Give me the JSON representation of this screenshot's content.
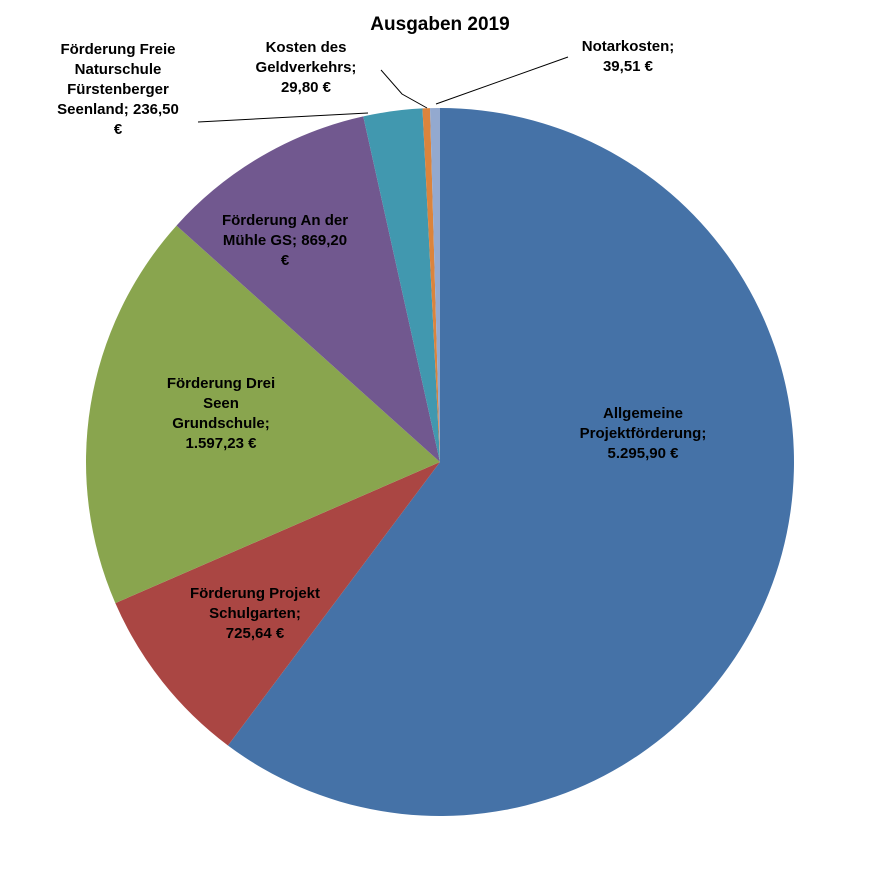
{
  "chart_data": {
    "type": "pie",
    "title": "Ausgaben 2019",
    "series": [
      {
        "name": "Allgemeine Projektförderung",
        "value": 5295.9,
        "label_lines": [
          "Allgemeine",
          "Projektförderung;",
          "5.295,90 €"
        ],
        "color": "#4572a7"
      },
      {
        "name": "Förderung Projekt Schulgarten",
        "value": 725.64,
        "label_lines": [
          "Förderung Projekt",
          "Schulgarten;",
          "725,64 €"
        ],
        "color": "#aa4643"
      },
      {
        "name": "Förderung Drei Seen Grundschule",
        "value": 1597.23,
        "label_lines": [
          "Förderung Drei",
          "Seen",
          "Grundschule;",
          "1.597,23 €"
        ],
        "color": "#89a54e"
      },
      {
        "name": "Förderung An der Mühle GS",
        "value": 869.2,
        "label_lines": [
          "Förderung An der",
          "Mühle GS; 869,20",
          "€"
        ],
        "color": "#71588f"
      },
      {
        "name": "Förderung Freie Naturschule Fürstenberger Seenland",
        "value": 236.5,
        "label_lines": [
          "Förderung Freie",
          "Naturschule",
          "Fürstenberger",
          "Seenland; 236,50",
          "€"
        ],
        "color": "#4198af"
      },
      {
        "name": "Kosten des Geldverkehrs",
        "value": 29.8,
        "label_lines": [
          "Kosten des",
          "Geldverkehrs;",
          "29,80 €"
        ],
        "color": "#db843d"
      },
      {
        "name": "Notarkosten",
        "value": 39.51,
        "label_lines": [
          "Notarkosten;",
          "39,51 €"
        ],
        "color": "#93a9cf"
      }
    ]
  }
}
